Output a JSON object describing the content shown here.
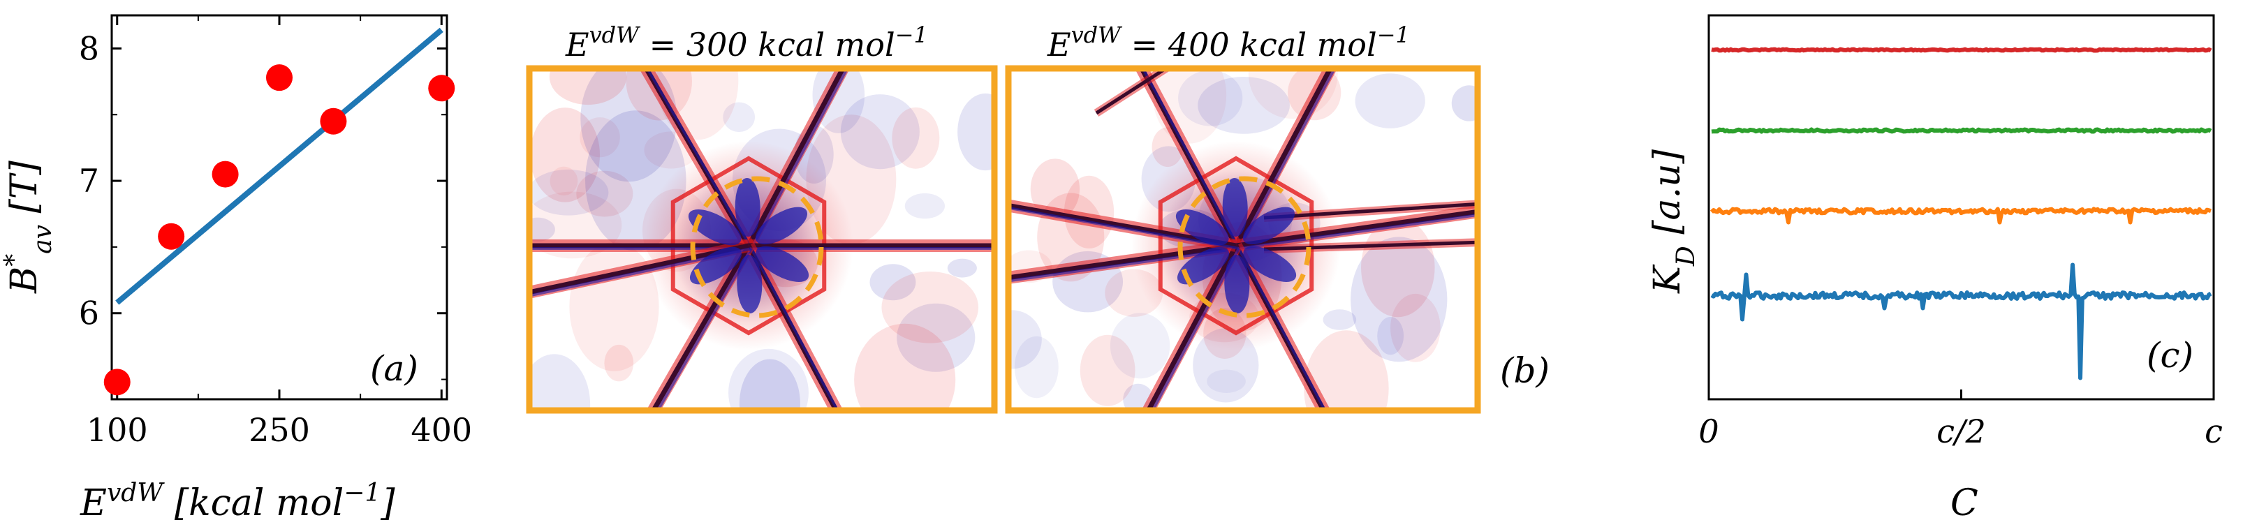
{
  "chart_data": [
    {
      "type": "scatter",
      "panel_label": "(a)",
      "xlabel": "E^{vdW} [kcal mol^{-1}]",
      "xlabel_base": "E",
      "xlabel_sup": "vdW",
      "xlabel_unit_open": " [kcal mol",
      "xlabel_unit_sup": "−1",
      "xlabel_unit_close": "]",
      "ylabel": "B*_{av} [T]",
      "ylabel_base": "B",
      "ylabel_sup": "*",
      "ylabel_sub": "av",
      "ylabel_unit": " [T]",
      "xlim": [
        95,
        405
      ],
      "ylim": [
        5.35,
        8.25
      ],
      "xticks": [
        100,
        250,
        400
      ],
      "yticks": [
        6,
        7,
        8
      ],
      "points": [
        {
          "x": 100,
          "y": 5.48
        },
        {
          "x": 150,
          "y": 6.58
        },
        {
          "x": 200,
          "y": 7.05
        },
        {
          "x": 250,
          "y": 7.78
        },
        {
          "x": 300,
          "y": 7.45
        },
        {
          "x": 400,
          "y": 7.7
        }
      ],
      "fit": [
        {
          "x": 100,
          "y": 6.08
        },
        {
          "x": 400,
          "y": 8.14
        }
      ],
      "point_color": "#ff0000",
      "fit_color": "#1f77b4"
    },
    {
      "type": "heatmap",
      "panel_label": "(b)",
      "maps": [
        {
          "title_base": "E",
          "title_sup": "vdW",
          "title_rest": " = 300 kcal mol",
          "title_rest_sup": "−1"
        },
        {
          "title_base": "E",
          "title_sup": "vdW",
          "title_rest": " = 400 kcal mol",
          "title_rest_sup": "−1"
        }
      ],
      "frame_color": "#f5a623",
      "positive_color": "#e41a1c",
      "negative_color": "#1a1aaa"
    },
    {
      "type": "line",
      "panel_label": "(c)",
      "xlabel": "C",
      "ylabel": "K_D [a.u]",
      "ylabel_base": "K",
      "ylabel_sub": "D",
      "ylabel_unit": " [a.u]",
      "xticks": [
        "0",
        "c/2",
        "c"
      ],
      "series": [
        {
          "color": "#1f77b4",
          "offset": 0.27
        },
        {
          "color": "#ff7f0e",
          "offset": 0.49
        },
        {
          "color": "#2ca02c",
          "offset": 0.7
        },
        {
          "color": "#d62728",
          "offset": 0.91
        }
      ]
    }
  ]
}
